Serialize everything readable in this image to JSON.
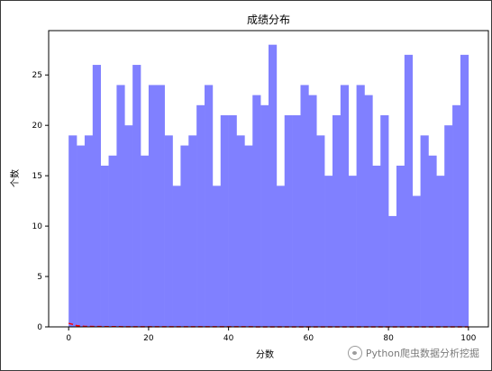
{
  "chart_data": {
    "type": "bar",
    "title": "成绩分布",
    "xlabel": "分数",
    "ylabel": "个数",
    "bin_start": 0,
    "bin_end": 100,
    "bin_width": 2,
    "values": [
      19,
      18,
      19,
      26,
      16,
      17,
      24,
      20,
      26,
      17,
      24,
      24,
      19,
      14,
      18,
      19,
      22,
      24,
      14,
      21,
      21,
      19,
      18,
      23,
      22,
      28,
      14,
      21,
      21,
      24,
      23,
      19,
      15,
      21,
      24,
      15,
      24,
      23,
      16,
      21,
      11,
      16,
      27,
      13,
      19,
      17,
      15,
      20,
      22,
      27
    ],
    "bar_color": "#8080ff",
    "density_curve": {
      "color": "#ff0000",
      "style": "dashed",
      "x": [
        0,
        1,
        2,
        4,
        10,
        20,
        50,
        100
      ],
      "y": [
        0.35,
        0.25,
        0.12,
        0.05,
        0.02,
        0.01,
        0.005,
        0.002
      ]
    },
    "xlim": [
      -5,
      105
    ],
    "ylim": [
      0,
      29.4
    ],
    "xticks": [
      0,
      20,
      40,
      60,
      80,
      100
    ],
    "xtick_labels": [
      "0",
      "20",
      "40",
      "60",
      "80",
      "100"
    ],
    "yticks": [
      0,
      5,
      10,
      15,
      20,
      25
    ],
    "ytick_labels": [
      "0",
      "5",
      "10",
      "15",
      "20",
      "25"
    ],
    "grid": false
  },
  "watermark": {
    "text": "Python爬虫数据分析挖掘",
    "icon": "wechat-icon"
  }
}
